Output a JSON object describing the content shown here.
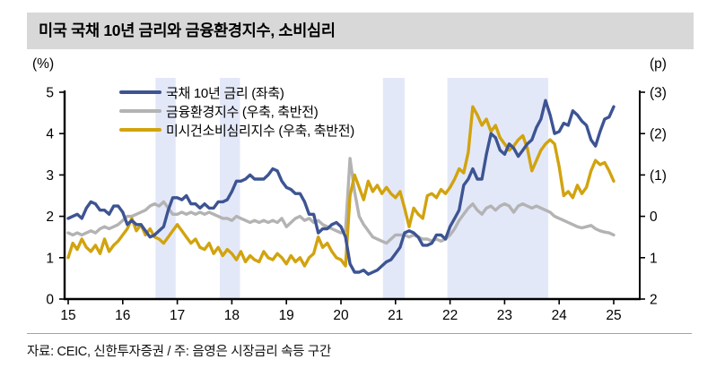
{
  "header": {
    "title": "미국 국채 10년 금리와 금융환경지수, 소비심리"
  },
  "footer": {
    "text": "자료: CEIC, 신한투자증권  /  주: 음영은 시장금리 속등 구간"
  },
  "chart_data": {
    "type": "line",
    "title": "미국 국채 10년 금리와 금융환경지수, 소비심리",
    "grid": false,
    "legend_position": "top-left-inside",
    "band_color": "#e3e8f9",
    "left_axis": {
      "unit": "(%)",
      "min": 0,
      "max": 5,
      "tick_labels": [
        "5",
        "4",
        "3",
        "2",
        "1",
        "0"
      ]
    },
    "right_axis": {
      "unit": "(p)",
      "min": -3,
      "max": 2,
      "reversed": true,
      "tick_labels": [
        "(3)",
        "(2)",
        "(1)",
        "0",
        "1",
        "2"
      ]
    },
    "x_axis": {
      "start_year": 2015,
      "months_per_point": 1,
      "tick_labels": [
        "15",
        "16",
        "17",
        "18",
        "19",
        "20",
        "21",
        "22",
        "23",
        "24",
        "25"
      ]
    },
    "shaded_bands": [
      {
        "from": 2016.6,
        "to": 2016.97
      },
      {
        "from": 2017.78,
        "to": 2018.15
      },
      {
        "from": 2020.77,
        "to": 2021.17
      },
      {
        "from": 2021.95,
        "to": 2023.8
      }
    ],
    "series": [
      {
        "name": "국채 10년 금리 (좌축)",
        "axis": "left",
        "color": "#3d5493",
        "values": [
          1.95,
          2.0,
          2.05,
          1.95,
          2.2,
          2.35,
          2.3,
          2.15,
          2.15,
          2.05,
          2.25,
          2.25,
          2.1,
          1.8,
          1.9,
          1.8,
          1.8,
          1.65,
          1.5,
          1.55,
          1.65,
          1.75,
          2.15,
          2.45,
          2.45,
          2.4,
          2.5,
          2.3,
          2.3,
          2.2,
          2.3,
          2.2,
          2.2,
          2.35,
          2.35,
          2.4,
          2.6,
          2.85,
          2.85,
          2.9,
          3.0,
          2.9,
          2.9,
          2.9,
          3.0,
          3.15,
          3.1,
          2.85,
          2.7,
          2.65,
          2.55,
          2.55,
          2.35,
          2.05,
          2.05,
          1.6,
          1.7,
          1.7,
          1.8,
          1.85,
          1.75,
          1.5,
          0.85,
          0.65,
          0.65,
          0.7,
          0.6,
          0.65,
          0.7,
          0.8,
          0.9,
          0.95,
          1.1,
          1.25,
          1.6,
          1.65,
          1.6,
          1.5,
          1.3,
          1.3,
          1.35,
          1.55,
          1.55,
          1.45,
          1.75,
          1.95,
          2.15,
          2.75,
          2.9,
          3.15,
          2.9,
          2.9,
          3.5,
          4.0,
          3.9,
          3.6,
          3.5,
          3.75,
          3.65,
          3.45,
          3.6,
          3.75,
          3.85,
          4.15,
          4.35,
          4.8,
          4.45,
          4.0,
          4.05,
          4.25,
          4.2,
          4.55,
          4.45,
          4.3,
          4.2,
          3.85,
          3.7,
          4.05,
          4.35,
          4.4,
          4.65
        ]
      },
      {
        "name": "금융환경지수 (우축, 축반전)",
        "axis": "right",
        "color": "#b3b3b3",
        "values": [
          0.4,
          0.45,
          0.4,
          0.45,
          0.4,
          0.35,
          0.4,
          0.3,
          0.25,
          0.3,
          0.25,
          0.2,
          0.1,
          0.0,
          0.0,
          -0.05,
          -0.1,
          -0.15,
          -0.25,
          -0.3,
          -0.25,
          -0.35,
          -0.2,
          -0.05,
          -0.05,
          -0.1,
          -0.05,
          -0.1,
          -0.05,
          -0.1,
          -0.05,
          -0.1,
          -0.05,
          0.0,
          0.05,
          0.05,
          0.1,
          0.0,
          0.05,
          0.1,
          0.15,
          0.1,
          0.15,
          0.1,
          0.15,
          0.1,
          0.15,
          0.05,
          0.25,
          0.15,
          0.05,
          0.0,
          0.1,
          0.05,
          0.15,
          0.1,
          0.2,
          0.25,
          0.3,
          0.35,
          0.4,
          0.35,
          -1.4,
          -0.6,
          0.0,
          0.2,
          0.35,
          0.5,
          0.55,
          0.6,
          0.65,
          0.55,
          0.45,
          0.45,
          0.45,
          0.5,
          0.45,
          0.5,
          0.55,
          0.55,
          0.6,
          0.55,
          0.6,
          0.55,
          0.45,
          0.3,
          0.1,
          -0.05,
          -0.2,
          -0.3,
          -0.15,
          -0.05,
          -0.2,
          -0.25,
          -0.15,
          -0.25,
          -0.3,
          -0.25,
          -0.1,
          -0.25,
          -0.3,
          -0.25,
          -0.2,
          -0.25,
          -0.2,
          -0.15,
          -0.1,
          0.0,
          0.05,
          0.1,
          0.15,
          0.2,
          0.25,
          0.28,
          0.25,
          0.22,
          0.3,
          0.35,
          0.38,
          0.4,
          0.45
        ]
      },
      {
        "name": "미시건소비심리지수 (우축, 축반전)",
        "axis": "right",
        "color": "#d2a30e",
        "values": [
          1.0,
          0.65,
          0.8,
          0.55,
          0.75,
          0.85,
          0.7,
          0.9,
          0.55,
          0.85,
          0.7,
          0.6,
          0.45,
          0.3,
          0.05,
          0.35,
          0.2,
          0.45,
          0.3,
          0.5,
          0.55,
          0.65,
          0.5,
          0.35,
          0.2,
          0.35,
          0.5,
          0.65,
          0.55,
          0.75,
          0.8,
          0.65,
          0.9,
          0.75,
          0.95,
          0.8,
          0.9,
          1.05,
          0.85,
          1.1,
          0.95,
          1.05,
          1.1,
          0.85,
          1.0,
          1.05,
          0.9,
          1.0,
          1.15,
          0.95,
          1.1,
          1.0,
          1.2,
          1.0,
          0.9,
          0.5,
          0.75,
          0.65,
          0.85,
          1.0,
          1.05,
          1.2,
          -0.5,
          -1.0,
          -0.7,
          -0.4,
          -0.85,
          -0.6,
          -0.75,
          -0.55,
          -0.7,
          -0.55,
          -0.45,
          -0.6,
          -0.2,
          0.25,
          -0.2,
          -0.05,
          0.05,
          -0.5,
          -0.55,
          -0.45,
          -0.65,
          -0.55,
          -0.7,
          -0.9,
          -1.15,
          -1.05,
          -1.55,
          -2.65,
          -2.45,
          -2.2,
          -2.35,
          -2.05,
          -2.2,
          -1.9,
          -1.75,
          -1.6,
          -1.7,
          -1.85,
          -1.95,
          -1.65,
          -1.1,
          -1.35,
          -1.6,
          -1.75,
          -1.85,
          -1.75,
          -1.2,
          -0.5,
          -0.6,
          -0.45,
          -0.75,
          -0.55,
          -0.7,
          -1.1,
          -1.35,
          -1.25,
          -1.3,
          -1.1,
          -0.85
        ]
      }
    ]
  }
}
